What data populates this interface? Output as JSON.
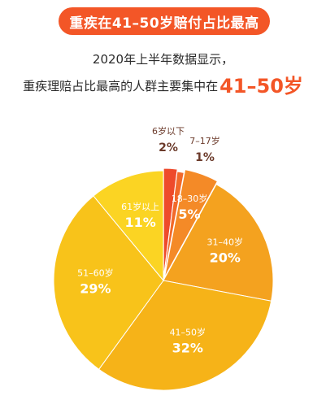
{
  "header": {
    "title": "重疾在41–50岁赔付占比最高",
    "subtitle_line1": "2020年上半年数据显示，",
    "subtitle_line2_prefix": "重疾理赔占比最高的人群主要集中在",
    "subtitle_line2_highlight": "41–50岁"
  },
  "colors": {
    "banner": "#f35627",
    "highlight": "#f35627"
  },
  "chart_data": {
    "type": "pie",
    "categories": [
      "6岁以下",
      "7–17岁",
      "18–30岁",
      "31–40岁",
      "41–50岁",
      "51–60岁",
      "61岁以上"
    ],
    "values": [
      2,
      1,
      5,
      20,
      32,
      29,
      11
    ],
    "value_labels": [
      "2%",
      "1%",
      "5%",
      "20%",
      "32%",
      "29%",
      "11%"
    ],
    "colors": [
      "#ee4a2b",
      "#f2692a",
      "#f48a27",
      "#f4a21f",
      "#f6b318",
      "#f8c31a",
      "#fbd423"
    ],
    "start_angle_deg": 0,
    "direction": "clockwise"
  }
}
